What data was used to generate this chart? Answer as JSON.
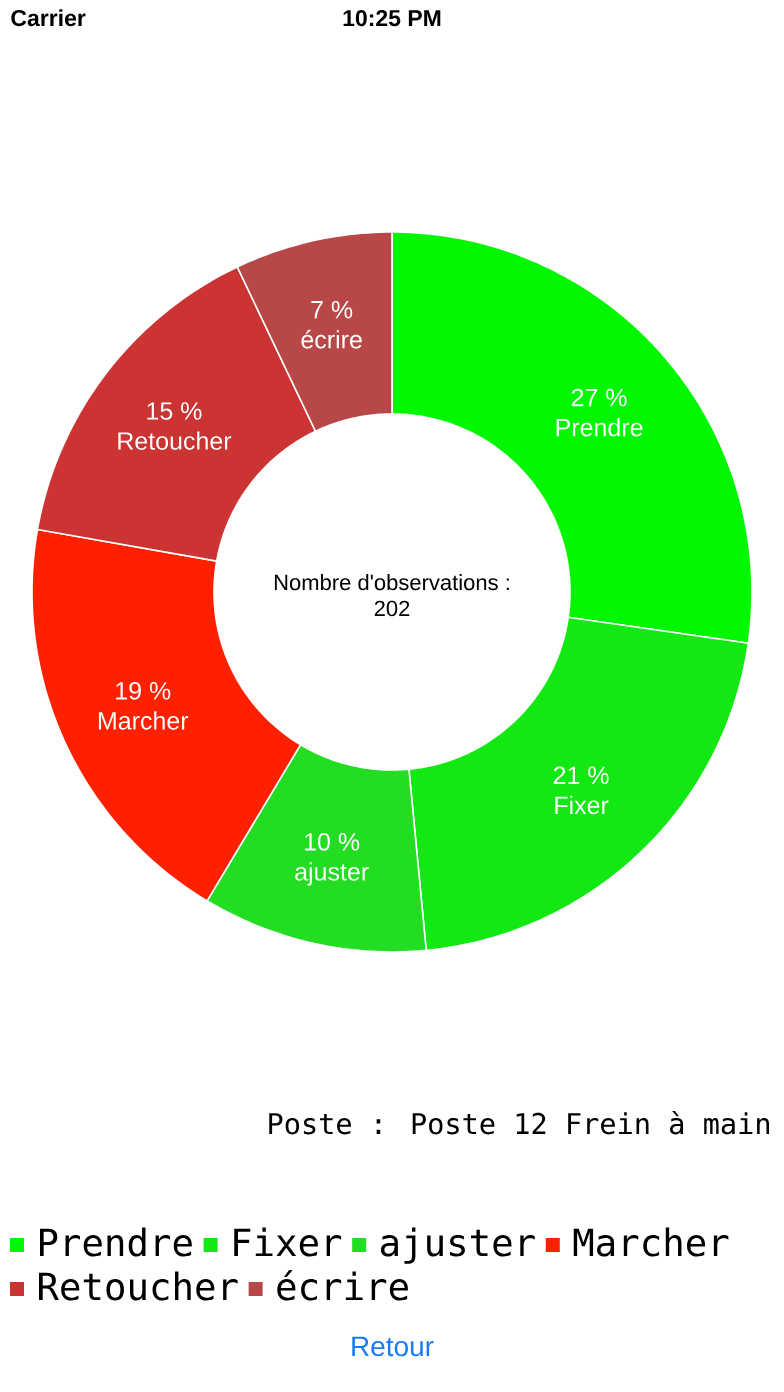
{
  "chart_data": {
    "type": "donut",
    "categories": [
      "Prendre",
      "Fixer",
      "ajuster",
      "Marcher",
      "Retoucher",
      "écrire"
    ],
    "values": [
      27,
      21,
      10,
      19,
      15,
      7
    ],
    "colors": [
      "#00f700",
      "#12e812",
      "#22dd22",
      "#ff2000",
      "#cc3333",
      "#b84848"
    ],
    "value_labels": [
      "27 %",
      "21 %",
      "10 %",
      "19 %",
      "15 %",
      "7 %"
    ],
    "legend": "bottom",
    "annotations": [
      "Carrier",
      "10:25 PM",
      "Nombre d'observations :",
      "202",
      "Poste : Poste 12 Frein à main",
      "Retour"
    ]
  }
}
